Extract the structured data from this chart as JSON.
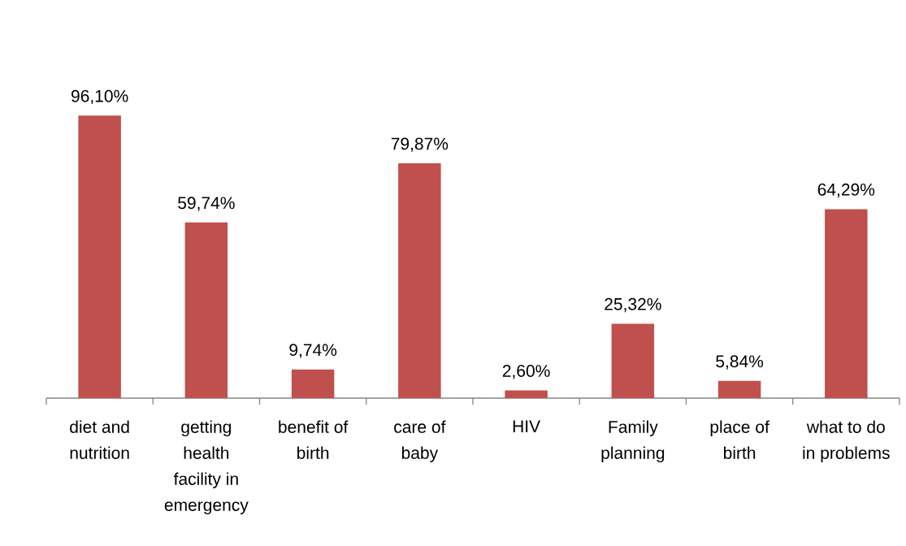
{
  "chart_data": {
    "type": "bar",
    "categories": [
      "diet and nutrition",
      "getting health facility in emergency",
      "benefit of birth",
      "care of baby",
      "HIV",
      "Family planning",
      "place of birth",
      "what to do in problems"
    ],
    "values": [
      96.1,
      59.74,
      9.74,
      79.87,
      2.6,
      25.32,
      5.84,
      64.29
    ],
    "value_labels": [
      "96,10%",
      "59,74%",
      "9,74%",
      "79,87%",
      "2,60%",
      "25,32%",
      "5,84%",
      "64,29%"
    ],
    "color": "#c0504d",
    "tick_labels": "x"
  }
}
